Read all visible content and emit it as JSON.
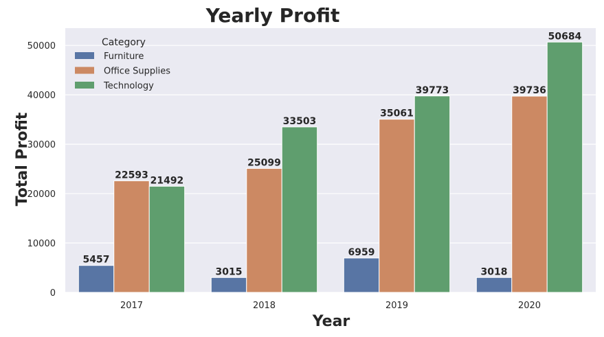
{
  "chart_data": {
    "type": "bar",
    "title": "Yearly Profit",
    "xlabel": "Year",
    "ylabel": "Total Profit",
    "categories": [
      "2017",
      "2018",
      "2019",
      "2020"
    ],
    "series": [
      {
        "name": "Furniture",
        "color": "#5875a4",
        "values": [
          5457,
          3015,
          6959,
          3018
        ]
      },
      {
        "name": "Office Supplies",
        "color": "#cc8963",
        "values": [
          22593,
          25099,
          35061,
          39736
        ]
      },
      {
        "name": "Technology",
        "color": "#5f9e6e",
        "values": [
          21492,
          33503,
          39773,
          50684
        ]
      }
    ],
    "ylim": [
      0,
      53500
    ],
    "yticks": [
      0,
      10000,
      20000,
      30000,
      40000,
      50000
    ],
    "legend_title": "Category",
    "legend_position": "top-left",
    "grid": true,
    "background": "#eaeaf2"
  }
}
